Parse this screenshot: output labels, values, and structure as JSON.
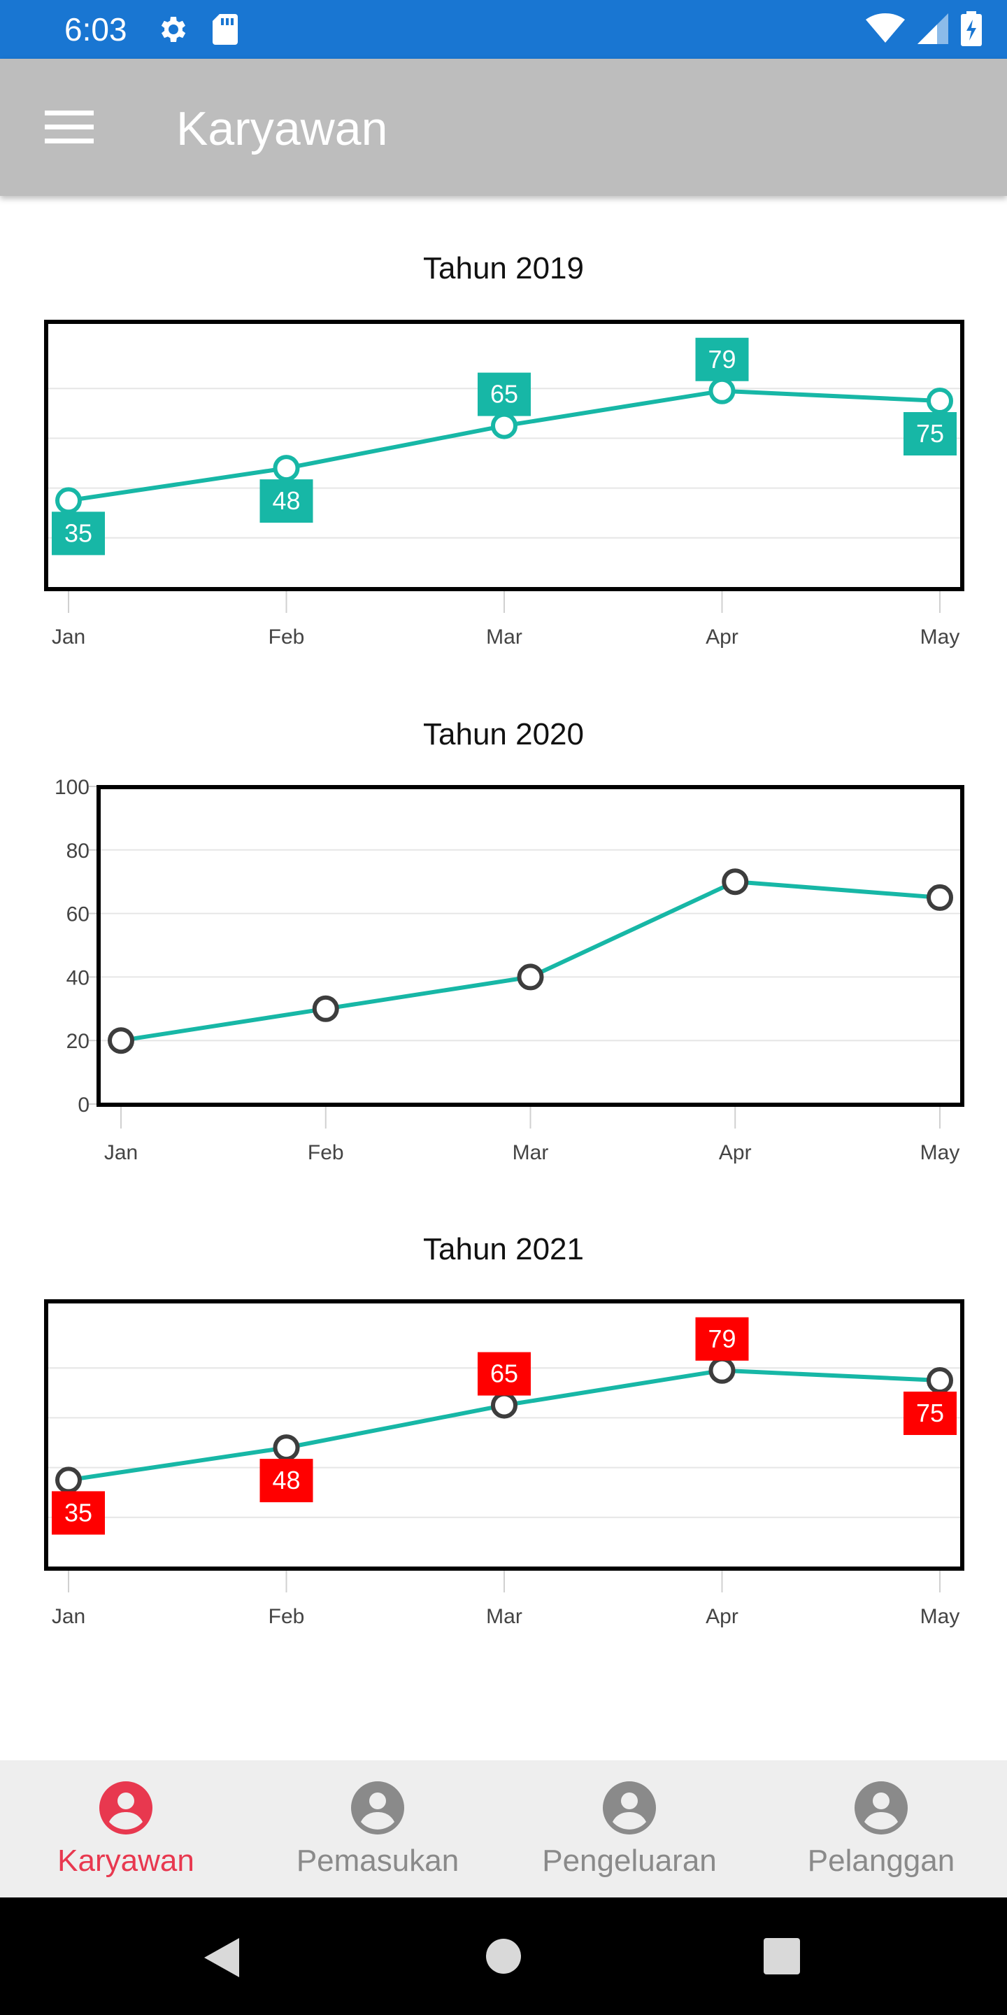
{
  "status_bar": {
    "time": "6:03",
    "icons": [
      "gear-icon",
      "sd-card-icon",
      "wifi-icon",
      "signal-icon",
      "battery-charging-icon"
    ]
  },
  "app_bar": {
    "title": "Karyawan",
    "menu_icon": "hamburger-menu-icon"
  },
  "colors": {
    "line": "#17b7a6",
    "label_teal": "#17b7a6",
    "label_red": "#ff0000",
    "marker_dark": "#3d3d3d",
    "active_nav": "#e8384f"
  },
  "chart_data": [
    {
      "type": "line",
      "title": "Tahun 2019",
      "categories": [
        "Jan",
        "Feb",
        "Mar",
        "Apr",
        "May"
      ],
      "values": [
        35,
        48,
        65,
        79,
        75
      ],
      "ylim": [
        0,
        100
      ],
      "show_y_axis": false,
      "data_labels": true,
      "grid": true,
      "marker_color": "#17b7a6",
      "label_color": "#17b7a6"
    },
    {
      "type": "line",
      "title": "Tahun 2020",
      "categories": [
        "Jan",
        "Feb",
        "Mar",
        "Apr",
        "May"
      ],
      "values": [
        20,
        30,
        40,
        70,
        65
      ],
      "ylim": [
        0,
        100
      ],
      "yticks": [
        0,
        20,
        40,
        60,
        80,
        100
      ],
      "show_y_axis": true,
      "data_labels": false,
      "grid": true,
      "marker_color": "#3d3d3d"
    },
    {
      "type": "line",
      "title": "Tahun 2021",
      "categories": [
        "Jan",
        "Feb",
        "Mar",
        "Apr",
        "May"
      ],
      "values": [
        35,
        48,
        65,
        79,
        75
      ],
      "ylim": [
        0,
        100
      ],
      "show_y_axis": false,
      "data_labels": true,
      "grid": true,
      "marker_color": "#3d3d3d",
      "label_color": "#ff0000"
    }
  ],
  "bottom_nav": {
    "items": [
      {
        "label": "Karyawan",
        "icon": "account-circle-icon",
        "active": true
      },
      {
        "label": "Pemasukan",
        "icon": "account-circle-icon",
        "active": false
      },
      {
        "label": "Pengeluaran",
        "icon": "account-circle-icon",
        "active": false
      },
      {
        "label": "Pelanggan",
        "icon": "account-circle-icon",
        "active": false
      }
    ]
  },
  "system_nav": {
    "icons": [
      "back-icon",
      "home-icon",
      "recents-icon"
    ]
  }
}
